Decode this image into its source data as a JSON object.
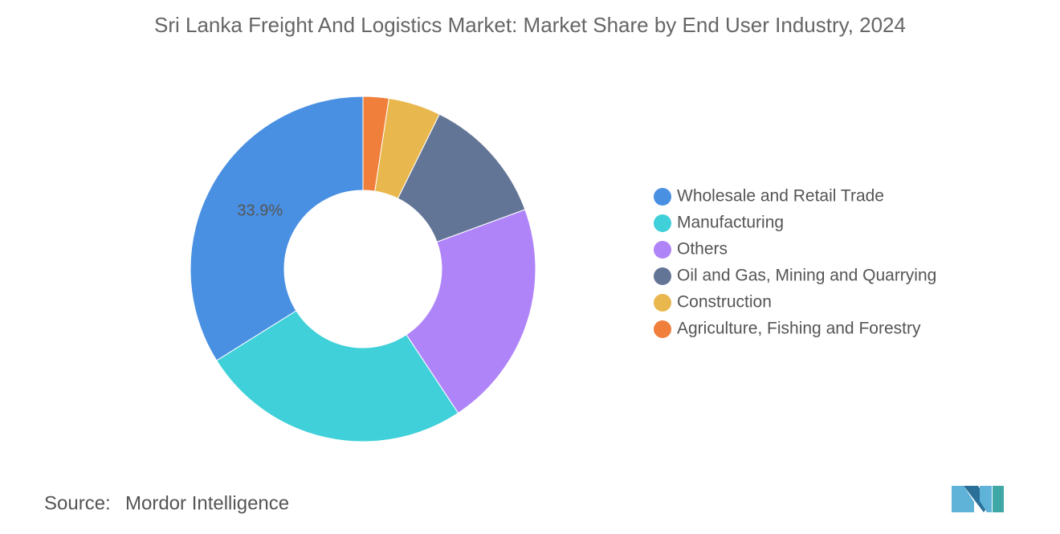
{
  "chart_data": {
    "type": "donut",
    "title": "Sri Lanka Freight And Logistics Market: Market Share by End User Industry, 2024",
    "categories": [
      "Wholesale and Retail Trade",
      "Manufacturing",
      "Others",
      "Oil and Gas, Mining and Quarrying",
      "Construction",
      "Agriculture, Fishing and Forestry"
    ],
    "values": [
      33.9,
      25.4,
      21.3,
      12.1,
      4.9,
      2.4
    ],
    "value_labels": [
      "33.9%",
      null,
      null,
      null,
      null,
      null
    ],
    "colors": [
      "#4a90e2",
      "#3fd0d9",
      "#b084f9",
      "#637596",
      "#e8b84e",
      "#f07f3c"
    ],
    "legend": "right",
    "source_label": "Source:",
    "source": "Mordor Intelligence"
  }
}
